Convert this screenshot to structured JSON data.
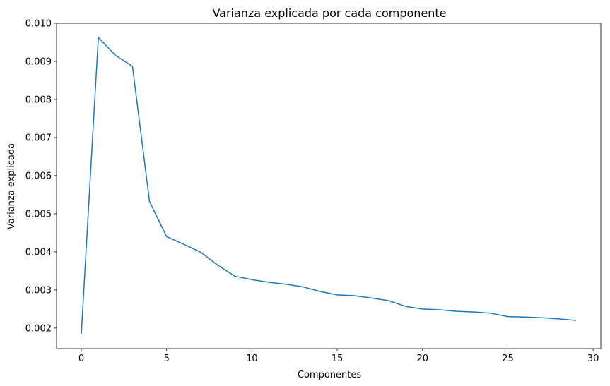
{
  "chart_data": {
    "type": "line",
    "title": "Varianza explicada por cada componente",
    "xlabel": "Componentes",
    "ylabel": "Varianza explicada",
    "xlim": [
      -1.45,
      30.45
    ],
    "ylim": [
      0.00146,
      0.01
    ],
    "xticks": [
      0,
      5,
      10,
      15,
      20,
      25,
      30
    ],
    "xtick_labels": [
      "0",
      "5",
      "10",
      "15",
      "20",
      "25",
      "30"
    ],
    "yticks": [
      0.002,
      0.003,
      0.004,
      0.005,
      0.006,
      0.007,
      0.008,
      0.009,
      0.01
    ],
    "ytick_labels": [
      "0.002",
      "0.003",
      "0.004",
      "0.005",
      "0.006",
      "0.007",
      "0.008",
      "0.009",
      "0.010"
    ],
    "grid": false,
    "series": [
      {
        "color": "#1f77b4",
        "x": [
          0,
          1,
          2,
          3,
          4,
          5,
          6,
          7,
          8,
          9,
          10,
          11,
          12,
          13,
          14,
          15,
          16,
          17,
          18,
          19,
          20,
          21,
          22,
          23,
          24,
          25,
          26,
          27,
          28,
          29
        ],
        "values": [
          0.00184,
          0.00963,
          0.00916,
          0.00887,
          0.00532,
          0.0044,
          0.0042,
          0.00399,
          0.00365,
          0.00336,
          0.00327,
          0.0032,
          0.00315,
          0.00308,
          0.00296,
          0.00287,
          0.00285,
          0.00279,
          0.00272,
          0.00257,
          0.0025,
          0.00248,
          0.00244,
          0.00242,
          0.00239,
          0.0023,
          0.00229,
          0.00227,
          0.00224,
          0.0022
        ]
      }
    ]
  }
}
